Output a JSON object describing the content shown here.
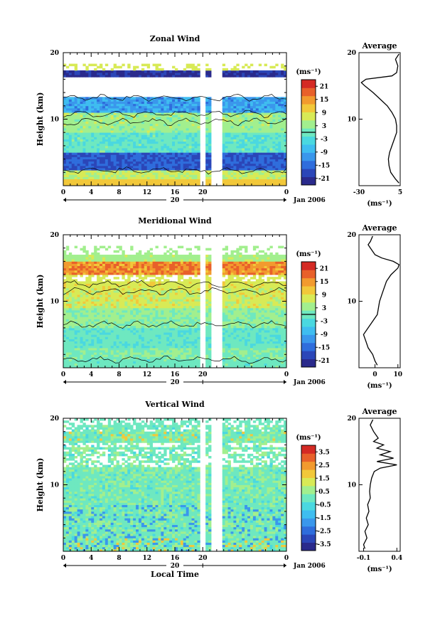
{
  "palette": [
    "#2a2a8c",
    "#2b46b8",
    "#2f6ddc",
    "#3a97ec",
    "#3fbdf0",
    "#4ad8e0",
    "#6ee8c0",
    "#a2ef8e",
    "#d8ea56",
    "#f2c83a",
    "#f29a2e",
    "#e8602a",
    "#d42a24"
  ],
  "chart_data": [
    {
      "type": "heatmap",
      "title": "Zonal Wind",
      "ylabel": "Height (km)",
      "ylim": [
        0,
        20
      ],
      "xlim": [
        0,
        32
      ],
      "y_ticks": [
        "10",
        "20"
      ],
      "x_ticks": [
        "0",
        "4",
        "8",
        "12",
        "16",
        "20",
        "0"
      ],
      "date_marker": "20",
      "date_label": "Jan 2006",
      "colorbar": {
        "unit": "(ms⁻¹)",
        "labels": [
          "21",
          "15",
          "9",
          "3",
          "-3",
          "-9",
          "-15",
          "-21"
        ],
        "min": -24,
        "max": 24,
        "contour_level": 0
      },
      "profile": {
        "title": "Average",
        "unit": "(ms⁻¹)",
        "xlim": [
          -30,
          5
        ],
        "x_ticks": [
          "-30",
          "5"
        ],
        "y_ticks": [
          "10",
          "20"
        ],
        "heights": [
          0.4,
          1,
          2,
          3,
          4,
          5,
          6,
          7,
          8,
          9,
          10,
          11,
          12,
          13,
          14,
          15,
          15.5,
          16,
          16.5,
          17,
          18,
          19,
          19.8
        ],
        "values": [
          4,
          1,
          -3,
          -4.5,
          -5,
          -4,
          -2,
          0,
          2,
          2,
          1,
          -2,
          -6,
          -12,
          -18,
          -25,
          -28,
          -24,
          -2,
          2,
          3,
          1,
          4
        ]
      }
    },
    {
      "type": "heatmap",
      "title": "Meridional Wind",
      "ylabel": "Height (km)",
      "ylim": [
        0,
        20
      ],
      "xlim": [
        0,
        32
      ],
      "y_ticks": [
        "10",
        "20"
      ],
      "x_ticks": [
        "0",
        "4",
        "8",
        "12",
        "16",
        "20",
        "0"
      ],
      "date_marker": "20",
      "date_label": "Jan 2006",
      "colorbar": {
        "unit": "(ms⁻¹)",
        "labels": [
          "21",
          "15",
          "9",
          "3",
          "-3",
          "-9",
          "-15",
          "-21"
        ],
        "min": -24,
        "max": 24,
        "contour_level": 0
      },
      "profile": {
        "title": "Average",
        "unit": "(ms⁻¹)",
        "xlim": [
          -7,
          11
        ],
        "x_ticks": [
          "0",
          "10"
        ],
        "y_ticks": [
          "10",
          "20"
        ],
        "heights": [
          0.4,
          1,
          2,
          3,
          4,
          5,
          6,
          7,
          8,
          9,
          10,
          11,
          12,
          13,
          14,
          15,
          15.5,
          16,
          16.5,
          17,
          17.5,
          18,
          18.5,
          19,
          19.8
        ],
        "values": [
          1,
          0,
          -1,
          -3,
          -4,
          -5,
          -3,
          -1,
          1,
          1.5,
          2,
          3,
          4,
          5,
          7,
          10,
          10.5,
          8,
          3,
          0,
          -1,
          -2,
          -3,
          -2,
          -1
        ]
      }
    },
    {
      "type": "heatmap",
      "title": "Vertical Wind",
      "ylabel": "Height (km)",
      "xlabel": "Local Time",
      "ylim": [
        0,
        20
      ],
      "xlim": [
        0,
        32
      ],
      "y_ticks": [
        "10",
        "20"
      ],
      "x_ticks": [
        "0",
        "4",
        "8",
        "12",
        "16",
        "20",
        "0"
      ],
      "date_marker": "20",
      "date_label": "Jan 2006",
      "colorbar": {
        "unit": "(ms⁻¹)",
        "labels": [
          "3.5",
          "2.5",
          "1.5",
          "0.5",
          "-0.5",
          "-1.5",
          "-2.5",
          "-3.5"
        ],
        "min": -4,
        "max": 4
      },
      "profile": {
        "title": "Average",
        "unit": "(ms⁻¹)",
        "xlim": [
          -0.17,
          0.45
        ],
        "x_ticks": [
          "-0.1",
          "0.4"
        ],
        "y_ticks": [
          "10",
          "20"
        ],
        "heights": [
          0.4,
          1,
          2,
          3,
          4,
          5,
          6,
          7,
          8,
          9,
          10,
          11,
          12,
          12.5,
          13,
          13.5,
          14,
          14.5,
          15,
          15.5,
          16,
          16.5,
          17,
          18,
          19,
          19.8
        ],
        "values": [
          -0.08,
          -0.1,
          -0.05,
          -0.08,
          -0.03,
          -0.06,
          -0.02,
          -0.04,
          0.0,
          -0.01,
          0.0,
          0.02,
          0.06,
          0.15,
          0.4,
          0.1,
          0.35,
          0.15,
          0.3,
          0.1,
          0.2,
          0.05,
          0.12,
          0.05,
          0.0,
          0.04
        ]
      }
    }
  ]
}
